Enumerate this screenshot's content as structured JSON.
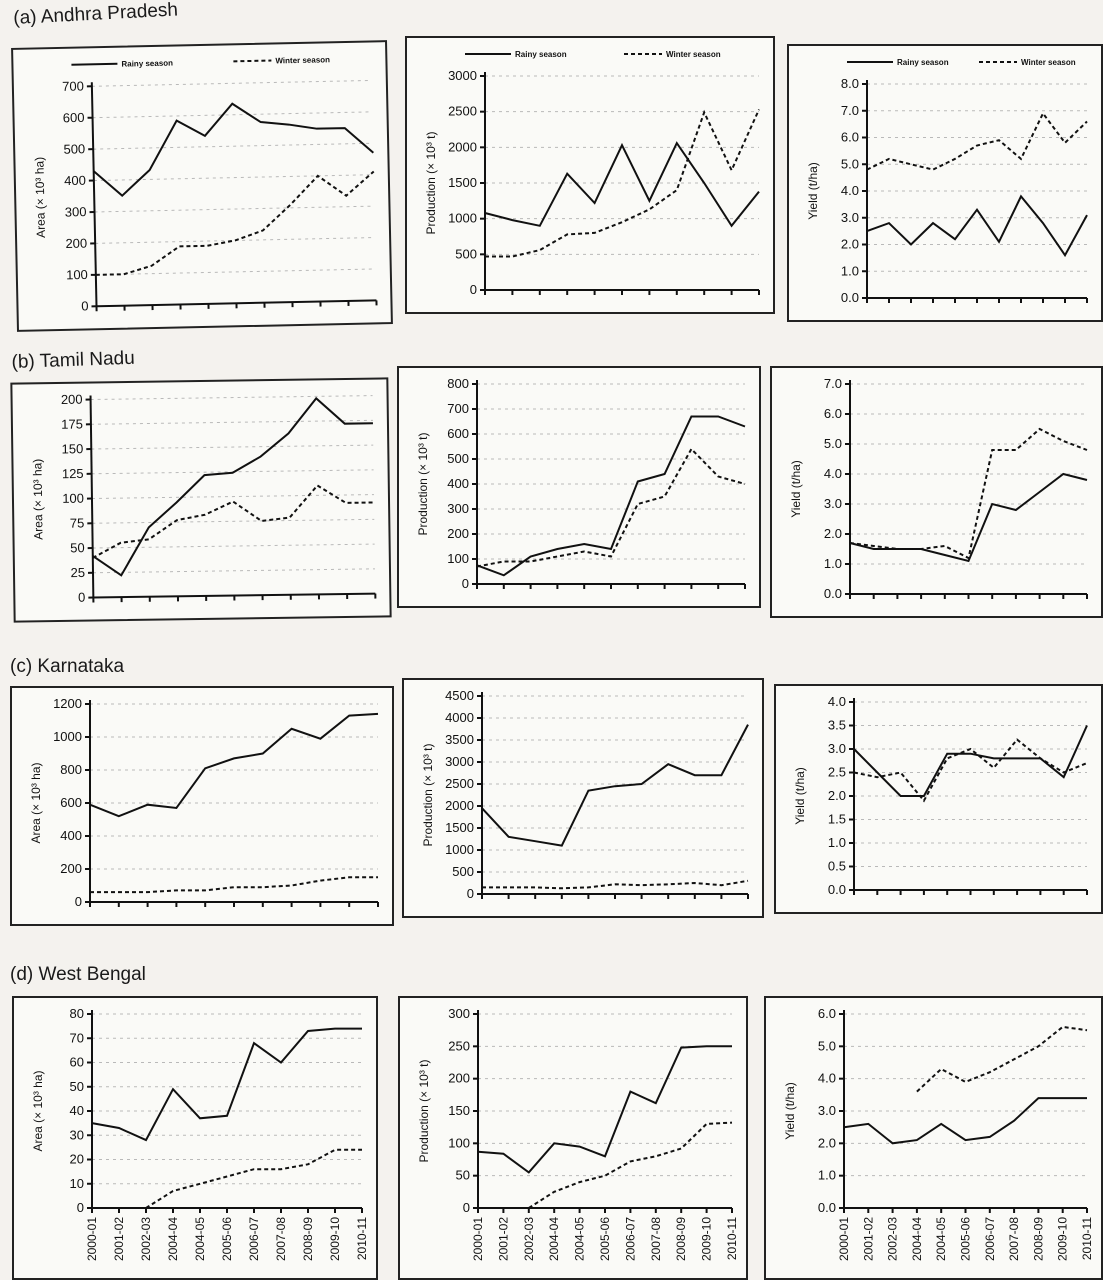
{
  "x_categories": [
    "2000-01",
    "2001-02",
    "2002-03",
    "2004-04",
    "2004-05",
    "2005-06",
    "2006-07",
    "2007-08",
    "2008-09",
    "2009-10",
    "2010-11"
  ],
  "legend": {
    "rainy": "Rainy season",
    "winter": "Winter season"
  },
  "sections": [
    {
      "title": "(a) Andhra Pradesh"
    },
    {
      "title": "(b) Tamil Nadu"
    },
    {
      "title": "(c) Karnataka"
    },
    {
      "title": "(d) West Bengal"
    }
  ],
  "chart_data": [
    {
      "type": "line",
      "section": 0,
      "ylabel": "Area (× 10³ ha)",
      "ylim": [
        0,
        700
      ],
      "yticks": [
        "0",
        "100",
        "200",
        "300",
        "400",
        "500",
        "600",
        "700"
      ],
      "legend": true,
      "show_xlabels": false,
      "series": [
        {
          "name": "Rainy season",
          "values": [
            430,
            350,
            430,
            585,
            535,
            635,
            575,
            565,
            550,
            550,
            470
          ]
        },
        {
          "name": "Winter season",
          "values": [
            100,
            100,
            125,
            185,
            185,
            200,
            230,
            310,
            400,
            335,
            410
          ]
        }
      ]
    },
    {
      "type": "line",
      "section": 0,
      "ylabel": "Production (× 10³ t)",
      "ylim": [
        0,
        3000
      ],
      "yticks": [
        "0",
        "500",
        "1000",
        "1500",
        "2000",
        "2500",
        "3000"
      ],
      "legend": true,
      "show_xlabels": false,
      "series": [
        {
          "name": "Rainy season",
          "values": [
            1080,
            980,
            900,
            1630,
            1220,
            2030,
            1250,
            2060,
            1500,
            900,
            1380
          ]
        },
        {
          "name": "Winter season",
          "values": [
            470,
            470,
            560,
            780,
            800,
            950,
            1130,
            1400,
            2490,
            1680,
            2530
          ]
        }
      ]
    },
    {
      "type": "line",
      "section": 0,
      "ylabel": "Yield (t/ha)",
      "ylim": [
        0,
        8
      ],
      "yticks": [
        "0.0",
        "1.0",
        "2.0",
        "3.0",
        "4.0",
        "5.0",
        "6.0",
        "7.0",
        "8.0"
      ],
      "legend": true,
      "show_xlabels": false,
      "series": [
        {
          "name": "Rainy season",
          "values": [
            2.5,
            2.8,
            2.0,
            2.8,
            2.2,
            3.3,
            2.1,
            3.8,
            2.8,
            1.6,
            3.1
          ]
        },
        {
          "name": "Winter season",
          "values": [
            4.8,
            5.2,
            5.0,
            4.8,
            5.2,
            5.7,
            5.9,
            5.2,
            6.9,
            5.8,
            6.6
          ]
        }
      ]
    },
    {
      "type": "line",
      "section": 1,
      "ylabel": "Area (× 10³ ha)",
      "ylim": [
        0,
        200
      ],
      "yticks": [
        "0",
        "25",
        "50",
        "75",
        "100",
        "125",
        "150",
        "175",
        "200"
      ],
      "legend": false,
      "show_xlabels": false,
      "series": [
        {
          "name": "Rainy season",
          "values": [
            42,
            22,
            70,
            95,
            122,
            124,
            140,
            163,
            198,
            172,
            172
          ]
        },
        {
          "name": "Winter season",
          "values": [
            40,
            55,
            58,
            77,
            82,
            95,
            75,
            78,
            110,
            92,
            92
          ]
        }
      ]
    },
    {
      "type": "line",
      "section": 1,
      "ylabel": "Production (× 10³ t)",
      "ylim": [
        0,
        800
      ],
      "yticks": [
        "0",
        "100",
        "200",
        "300",
        "400",
        "500",
        "600",
        "700",
        "800"
      ],
      "legend": false,
      "show_xlabels": false,
      "series": [
        {
          "name": "Rainy season",
          "values": [
            75,
            35,
            110,
            140,
            160,
            140,
            410,
            440,
            670,
            670,
            630
          ]
        },
        {
          "name": "Winter season",
          "values": [
            70,
            90,
            90,
            110,
            130,
            110,
            320,
            350,
            540,
            430,
            400
          ]
        }
      ]
    },
    {
      "type": "line",
      "section": 1,
      "ylabel": "Yield (t/ha)",
      "ylim": [
        0,
        7
      ],
      "yticks": [
        "0.0",
        "1.0",
        "2.0",
        "3.0",
        "4.0",
        "5.0",
        "6.0",
        "7.0"
      ],
      "legend": false,
      "show_xlabels": false,
      "series": [
        {
          "name": "Rainy season",
          "values": [
            1.7,
            1.5,
            1.5,
            1.5,
            1.3,
            1.1,
            3.0,
            2.8,
            3.4,
            4.0,
            3.8
          ]
        },
        {
          "name": "Winter season",
          "values": [
            1.7,
            1.6,
            1.5,
            1.5,
            1.6,
            1.2,
            4.8,
            4.8,
            5.5,
            5.1,
            4.8
          ]
        }
      ]
    },
    {
      "type": "line",
      "section": 2,
      "ylabel": "Area (× 10³ ha)",
      "ylim": [
        0,
        1200
      ],
      "yticks": [
        "0",
        "200",
        "400",
        "600",
        "800",
        "1000",
        "1200"
      ],
      "legend": false,
      "show_xlabels": false,
      "series": [
        {
          "name": "Rainy season",
          "values": [
            590,
            520,
            590,
            570,
            810,
            870,
            900,
            1050,
            990,
            1130,
            1140
          ]
        },
        {
          "name": "Winter season",
          "values": [
            60,
            60,
            60,
            70,
            70,
            90,
            90,
            100,
            130,
            150,
            150
          ]
        }
      ]
    },
    {
      "type": "line",
      "section": 2,
      "ylabel": "Production (× 10³ t)",
      "ylim": [
        0,
        4500
      ],
      "yticks": [
        "0",
        "500",
        "1000",
        "1500",
        "2000",
        "2500",
        "3000",
        "3500",
        "4000",
        "4500"
      ],
      "legend": false,
      "show_xlabels": false,
      "series": [
        {
          "name": "Rainy season",
          "values": [
            1950,
            1300,
            1200,
            1100,
            2350,
            2450,
            2500,
            2950,
            2700,
            2700,
            3850
          ]
        },
        {
          "name": "Winter season",
          "values": [
            150,
            150,
            150,
            130,
            150,
            220,
            200,
            220,
            250,
            200,
            300
          ]
        }
      ]
    },
    {
      "type": "line",
      "section": 2,
      "ylabel": "Yield (t/ha)",
      "ylim": [
        0,
        4
      ],
      "yticks": [
        "0.0",
        "0.5",
        "1.0",
        "1.5",
        "2.0",
        "2.5",
        "3.0",
        "3.5",
        "4.0"
      ],
      "legend": false,
      "show_xlabels": false,
      "series": [
        {
          "name": "Rainy season",
          "values": [
            3.0,
            2.5,
            2.0,
            2.0,
            2.9,
            2.9,
            2.8,
            2.8,
            2.8,
            2.4,
            3.5
          ]
        },
        {
          "name": "Winter season",
          "values": [
            2.5,
            2.4,
            2.5,
            1.9,
            2.8,
            3.0,
            2.6,
            3.2,
            2.8,
            2.5,
            2.7
          ]
        }
      ]
    },
    {
      "type": "line",
      "section": 3,
      "ylabel": "Area (× 10³ ha)",
      "ylim": [
        0,
        80
      ],
      "yticks": [
        "0",
        "10",
        "20",
        "30",
        "40",
        "50",
        "60",
        "70",
        "80"
      ],
      "legend": false,
      "show_xlabels": true,
      "series": [
        {
          "name": "Rainy season",
          "values": [
            35,
            33,
            28,
            49,
            37,
            38,
            68,
            60,
            73,
            74,
            74
          ]
        },
        {
          "name": "Winter season",
          "values": [
            null,
            null,
            0,
            7,
            10,
            13,
            16,
            16,
            18,
            24,
            24
          ]
        }
      ]
    },
    {
      "type": "line",
      "section": 3,
      "ylabel": "Production (× 10³ t)",
      "ylim": [
        0,
        300
      ],
      "yticks": [
        "0",
        "50",
        "100",
        "150",
        "200",
        "250",
        "300"
      ],
      "legend": false,
      "show_xlabels": true,
      "series": [
        {
          "name": "Rainy season",
          "values": [
            87,
            84,
            55,
            100,
            95,
            80,
            180,
            162,
            248,
            250,
            250
          ]
        },
        {
          "name": "Winter season",
          "values": [
            null,
            null,
            0,
            25,
            40,
            50,
            72,
            80,
            92,
            130,
            132
          ]
        }
      ]
    },
    {
      "type": "line",
      "section": 3,
      "ylabel": "Yield (t/ha)",
      "ylim": [
        0,
        6
      ],
      "yticks": [
        "0.0",
        "1.0",
        "2.0",
        "3.0",
        "4.0",
        "5.0",
        "6.0"
      ],
      "legend": false,
      "show_xlabels": true,
      "series": [
        {
          "name": "Rainy season",
          "values": [
            2.5,
            2.6,
            2.0,
            2.1,
            2.6,
            2.1,
            2.2,
            2.7,
            3.4,
            3.4,
            3.4
          ]
        },
        {
          "name": "Winter season",
          "values": [
            null,
            null,
            null,
            3.6,
            4.3,
            3.9,
            4.2,
            4.6,
            5.0,
            5.6,
            5.5
          ]
        }
      ]
    }
  ]
}
